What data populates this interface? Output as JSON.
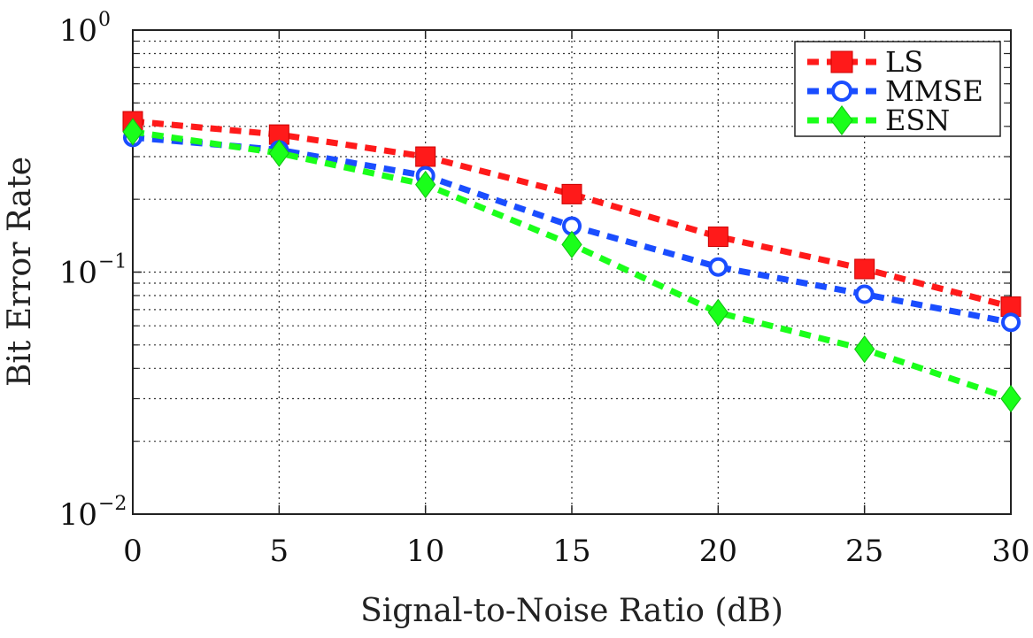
{
  "chart_data": {
    "type": "line",
    "x": [
      0,
      5,
      10,
      15,
      20,
      25,
      30
    ],
    "x_ticks": [
      "0",
      "5",
      "10",
      "15",
      "20",
      "25",
      "30"
    ],
    "xlabel": "Signal-to-Noise Ratio (dB)",
    "ylabel": "Bit Error Rate",
    "xlim": [
      0,
      30
    ],
    "ylim": [
      0.01,
      1
    ],
    "yscale": "log",
    "y_ticks": [
      {
        "value": 1,
        "base": "10",
        "exp": "0"
      },
      {
        "value": 0.1,
        "base": "10",
        "exp": "−1"
      },
      {
        "value": 0.01,
        "base": "10",
        "exp": "−2"
      }
    ],
    "grid": true,
    "legend_position": "top-right",
    "series": [
      {
        "name": "LS",
        "color": "#ff1a1a",
        "marker": "square",
        "values": [
          0.42,
          0.37,
          0.3,
          0.21,
          0.14,
          0.103,
          0.072
        ]
      },
      {
        "name": "MMSE",
        "color": "#1a4dff",
        "marker": "circle",
        "values": [
          0.36,
          0.32,
          0.25,
          0.155,
          0.105,
          0.081,
          0.062
        ]
      },
      {
        "name": "ESN",
        "color": "#1aff1a",
        "marker": "diamond",
        "values": [
          0.38,
          0.31,
          0.23,
          0.13,
          0.068,
          0.048,
          0.03
        ]
      }
    ]
  }
}
